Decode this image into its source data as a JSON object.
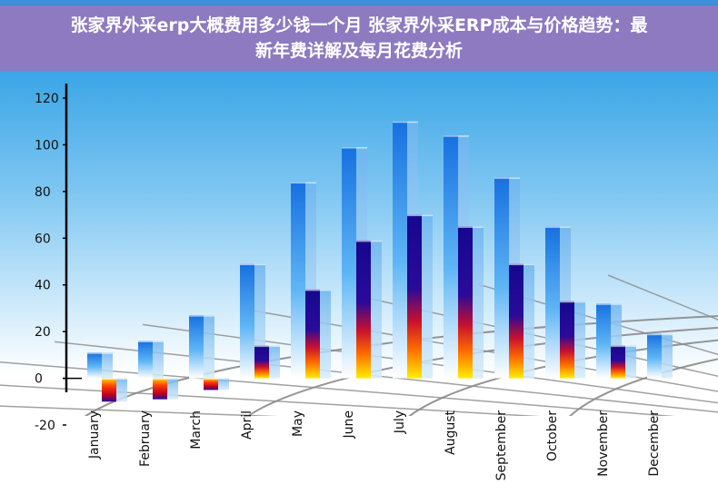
{
  "header": {
    "title": "张家界外采erp大概费用多少钱一个月 张家界外采ERP成本与价格趋势：最新年费详解及每月花费分析"
  },
  "colors": {
    "banner": "#8d7ac0",
    "blue_bar": "#1e90ff",
    "dark_bar_top": "#1a0a9a",
    "dark_bar_bottom": "#ffe600",
    "grid": "#8a8a8a"
  },
  "chart_data": {
    "type": "bar",
    "categories": [
      "January",
      "February",
      "March",
      "April",
      "May",
      "June",
      "July",
      "August",
      "September",
      "October",
      "November",
      "December"
    ],
    "series": [
      {
        "values": [
          11,
          16,
          27,
          49,
          84,
          99,
          110,
          104,
          86,
          65,
          32,
          19
        ]
      },
      {
        "values": [
          -10,
          -9,
          -5,
          14,
          38,
          59,
          70,
          65,
          49,
          33,
          14,
          null
        ]
      }
    ],
    "ylim": [
      -20,
      120
    ],
    "yticks": [
      -20,
      0,
      20,
      40,
      60,
      80,
      100,
      120
    ],
    "grid": true
  }
}
